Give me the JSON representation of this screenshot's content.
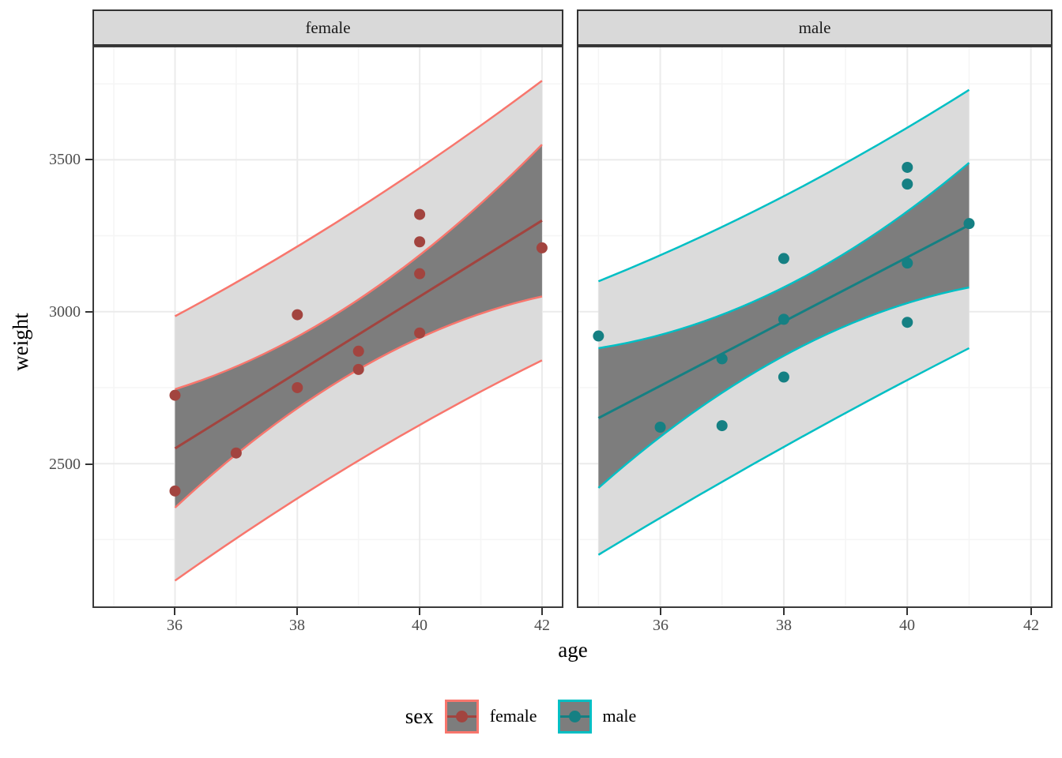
{
  "colors": {
    "female_accent": "#F8766D",
    "female_dark": "#A2443F",
    "male_accent": "#00BFC4",
    "male_dark": "#158083",
    "inner_band_fill": "#7D7D7D",
    "outer_band_fill": "#DBDBDB",
    "strip_bg": "#D9D9D9",
    "grid_major": "#EBEBEB",
    "grid_minor": "#F5F5F5",
    "panel_border": "#3A3A3A"
  },
  "chart_data": {
    "type": "scatter",
    "title": "",
    "xlabel": "age",
    "ylabel": "weight",
    "x_domain": [
      34.65,
      42.35
    ],
    "y_domain": [
      2025,
      3875
    ],
    "x_ticks": [
      36,
      38,
      40,
      42
    ],
    "x_minor_ticks": [
      35,
      37,
      39,
      41
    ],
    "y_ticks": [
      2500,
      3000,
      3500
    ],
    "y_minor_ticks": [
      2250,
      2750,
      3250,
      3750
    ],
    "grid": true,
    "legend": {
      "title": "sex",
      "position": "bottom",
      "items": [
        {
          "label": "female"
        },
        {
          "label": "male"
        }
      ]
    },
    "facets": [
      {
        "label": "female",
        "points": [
          [
            36,
            2725
          ],
          [
            36,
            2410
          ],
          [
            37,
            2535
          ],
          [
            38,
            2990
          ],
          [
            38,
            2750
          ],
          [
            39,
            2870
          ],
          [
            39,
            2810
          ],
          [
            40,
            3320
          ],
          [
            40,
            3230
          ],
          [
            40,
            3125
          ],
          [
            40,
            2930
          ],
          [
            42,
            3210
          ]
        ],
        "regression_line": [
          [
            36,
            2550
          ],
          [
            39,
            2925
          ],
          [
            42,
            3300
          ]
        ],
        "inner_band_upper": [
          [
            36,
            2745
          ],
          [
            39,
            3040
          ],
          [
            42,
            3550
          ]
        ],
        "inner_band_lower": [
          [
            36,
            2355
          ],
          [
            39,
            2810
          ],
          [
            42,
            3050
          ]
        ],
        "outer_band_upper": [
          [
            36,
            2985
          ],
          [
            39,
            3340
          ],
          [
            42,
            3760
          ]
        ],
        "outer_band_lower": [
          [
            36,
            2115
          ],
          [
            39,
            2510
          ],
          [
            42,
            2840
          ]
        ]
      },
      {
        "label": "male",
        "points": [
          [
            35,
            2920
          ],
          [
            36,
            2620
          ],
          [
            37,
            2845
          ],
          [
            37,
            2625
          ],
          [
            38,
            3175
          ],
          [
            38,
            2975
          ],
          [
            38,
            2785
          ],
          [
            40,
            3475
          ],
          [
            40,
            3420
          ],
          [
            40,
            3160
          ],
          [
            40,
            2965
          ],
          [
            41,
            3290
          ]
        ],
        "regression_line": [
          [
            35,
            2650
          ],
          [
            38,
            2967
          ],
          [
            41,
            3285
          ]
        ],
        "inner_band_upper": [
          [
            35,
            2880
          ],
          [
            38,
            3080
          ],
          [
            41,
            3490
          ]
        ],
        "inner_band_lower": [
          [
            35,
            2420
          ],
          [
            38,
            2855
          ],
          [
            41,
            3080
          ]
        ],
        "outer_band_upper": [
          [
            35,
            3100
          ],
          [
            38,
            3380
          ],
          [
            41,
            3730
          ]
        ],
        "outer_band_lower": [
          [
            35,
            2200
          ],
          [
            38,
            2555
          ],
          [
            41,
            2880
          ]
        ]
      }
    ]
  }
}
